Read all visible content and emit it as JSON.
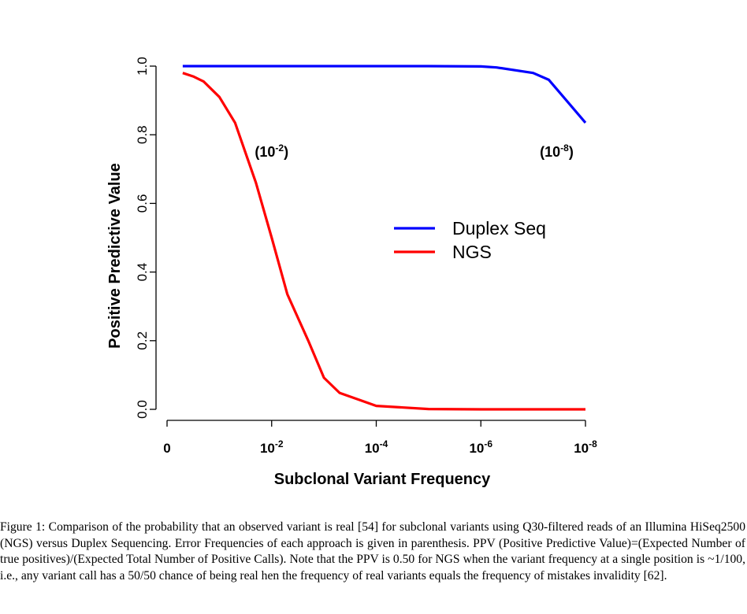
{
  "chart_data": {
    "type": "line",
    "xlabel": "Subclonal Variant Frequency",
    "ylabel": "Positive Predictive Value",
    "xlim": [
      0,
      8
    ],
    "ylim": [
      0,
      1
    ],
    "x_ticks": [
      {
        "base": "0",
        "exp": ""
      },
      {
        "base": "10",
        "exp": "-2"
      },
      {
        "base": "10",
        "exp": "-4"
      },
      {
        "base": "10",
        "exp": "-6"
      },
      {
        "base": "10",
        "exp": "-8"
      }
    ],
    "y_ticks": [
      "0.0",
      "0.2",
      "0.4",
      "0.6",
      "0.8",
      "1.0"
    ],
    "series": [
      {
        "name": "Duplex Seq",
        "color": "#0000ff",
        "x": [
          0.3,
          1,
          2,
          3,
          4,
          5,
          6,
          6.3,
          7,
          7.3,
          8
        ],
        "y": [
          1.0,
          1.0,
          1.0,
          1.0,
          1.0,
          1.0,
          0.999,
          0.996,
          0.98,
          0.96,
          0.835
        ]
      },
      {
        "name": "NGS",
        "color": "#ff0000",
        "x": [
          0.3,
          0.5,
          0.7,
          1.0,
          1.3,
          1.7,
          2.0,
          2.3,
          2.7,
          3.0,
          3.3,
          4.0,
          5.0,
          6.0,
          7.0,
          8.0
        ],
        "y": [
          0.98,
          0.97,
          0.955,
          0.91,
          0.835,
          0.66,
          0.5,
          0.335,
          0.2,
          0.092,
          0.048,
          0.01,
          0.001,
          0.0,
          0.0,
          0.0
        ]
      }
    ],
    "annotations": [
      {
        "base": "(10",
        "exp": "-2",
        "close": ")",
        "x": 2.0,
        "y": 0.75
      },
      {
        "base": "(10",
        "exp": "-8",
        "close": ")",
        "x": 7.45,
        "y": 0.75
      }
    ],
    "legend": "center-right"
  },
  "caption": {
    "lead": "Figure 1:",
    "text": " Comparison of the probability that an observed variant is real [54] for subclonal variants using Q30-filtered reads of an Illumina HiSeq2500 (NGS) versus Duplex Sequencing. Error Frequencies of each approach is given in parenthesis. PPV (Positive Predictive Value)=(Expected Number of true positives)/(Expected Total Number of Positive Calls). Note that the PPV is 0.50 for NGS when the variant frequency at a single position is ~1/100, i.e., any variant call has a 50/50 chance of being real hen the frequency of real variants equals the frequency of mistakes invalidity [62]."
  }
}
